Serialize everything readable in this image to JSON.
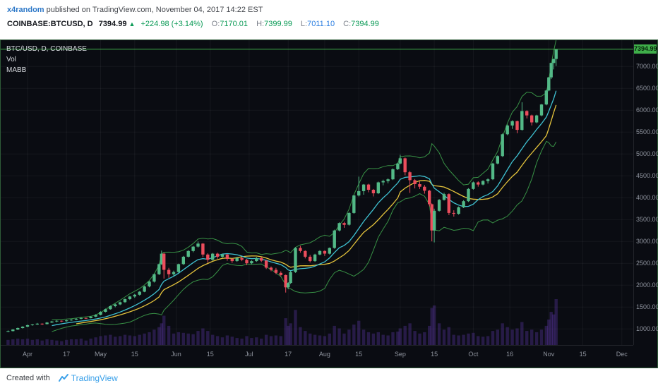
{
  "header": {
    "author": "x4random",
    "published": " published on TradingView.com, November 04, 2017 14:22 EST",
    "symbol": "COINBASE:BTCUSD, D",
    "price": "7394.99",
    "arrow": "▲",
    "change": "+224.98 (+3.14%)",
    "o_label": "O:",
    "o": "7170.01",
    "h_label": "H:",
    "h": "7399.99",
    "l_label": "L:",
    "l": "7011.10",
    "c_label": "C:",
    "c": "7394.99"
  },
  "chart": {
    "legend": [
      "BTC/USD, D, COINBASE",
      "Vol",
      "MABB"
    ],
    "price_tag": "7394.99",
    "price_axis_ticks": [
      {
        "value": 7000,
        "label": "7000.00"
      },
      {
        "value": 6500,
        "label": "6500.00"
      },
      {
        "value": 6000,
        "label": "6000.00"
      },
      {
        "value": 5500,
        "label": "5500.00"
      },
      {
        "value": 5000,
        "label": "5000.00"
      },
      {
        "value": 4500,
        "label": "4500.00"
      },
      {
        "value": 4000,
        "label": "4000.00"
      },
      {
        "value": 3500,
        "label": "3500.00"
      },
      {
        "value": 3000,
        "label": "3000.00"
      },
      {
        "value": 2500,
        "label": "2500.00"
      },
      {
        "value": 2000,
        "label": "2000.00"
      },
      {
        "value": 1500,
        "label": "1500.00"
      },
      {
        "value": 1000,
        "label": "1000.00"
      }
    ],
    "time_axis_ticks": [
      {
        "d": 0,
        "label": "Apr"
      },
      {
        "d": 16,
        "label": "17"
      },
      {
        "d": 30,
        "label": "May"
      },
      {
        "d": 44,
        "label": "15"
      },
      {
        "d": 61,
        "label": "Jun"
      },
      {
        "d": 75,
        "label": "15"
      },
      {
        "d": 91,
        "label": "Jul"
      },
      {
        "d": 107,
        "label": "17"
      },
      {
        "d": 122,
        "label": "Aug"
      },
      {
        "d": 136,
        "label": "15"
      },
      {
        "d": 153,
        "label": "Sep"
      },
      {
        "d": 167,
        "label": "15"
      },
      {
        "d": 183,
        "label": "Oct"
      },
      {
        "d": 198,
        "label": "16"
      },
      {
        "d": 214,
        "label": "Nov"
      },
      {
        "d": 228,
        "label": "15"
      },
      {
        "d": 244,
        "label": "Dec"
      }
    ],
    "colors": {
      "up": "#53b987",
      "down": "#eb4d5c",
      "volume": "rgba(103,58,183,0.32)",
      "bb": "#3da04b",
      "ma_fast": "#3fc1d1",
      "ma_slow": "#e5c43c",
      "price_line": "#3fae4a",
      "price_tag_bg": "#3fae4a",
      "grid": "rgba(255,255,255,0.05)"
    }
  },
  "footer": {
    "created_with": "Created with",
    "brand": "TradingView"
  },
  "chart_data": {
    "type": "candlestick",
    "title": "BTC/USD, D, COINBASE",
    "symbol": "COINBASE:BTCUSD",
    "interval": "D",
    "last_price": 7394.99,
    "last_ohlc": {
      "open": 7170.01,
      "high": 7399.99,
      "low": 7011.1,
      "close": 7394.99,
      "change": 224.98,
      "change_pct": 3.14
    },
    "indicators": {
      "name": "MABB",
      "bb_period": 10,
      "bb_mult": 2,
      "ma_fast_period": 10,
      "ma_slow_period": 15
    },
    "y_axis": {
      "min": 1000,
      "max": 7000,
      "tick_step": 500
    },
    "x_axis": "days since 2017-04-01 (Apr=0, May=30, Jun=61, Jul=91, Aug=122, Sep=153, Oct=183, Nov=214, Dec=244)",
    "columns": [
      "day",
      "open",
      "high",
      "low",
      "close",
      "volume"
    ],
    "candles": [
      [
        -8,
        940,
        965,
        925,
        950,
        8
      ],
      [
        -6,
        950,
        995,
        940,
        985,
        9
      ],
      [
        -4,
        985,
        1030,
        975,
        1020,
        10
      ],
      [
        -2,
        1020,
        1062,
        1008,
        1050,
        9
      ],
      [
        0,
        1050,
        1098,
        1040,
        1085,
        10
      ],
      [
        2,
        1085,
        1112,
        1072,
        1100,
        8
      ],
      [
        4,
        1100,
        1135,
        1090,
        1120,
        9
      ],
      [
        6,
        1120,
        1128,
        1088,
        1110,
        7
      ],
      [
        8,
        1110,
        1158,
        1100,
        1145,
        9
      ],
      [
        10,
        1145,
        1182,
        1135,
        1170,
        8
      ],
      [
        12,
        1170,
        1196,
        1152,
        1185,
        7
      ],
      [
        14,
        1185,
        1192,
        1158,
        1175,
        6
      ],
      [
        16,
        1175,
        1208,
        1165,
        1195,
        8
      ],
      [
        18,
        1195,
        1222,
        1185,
        1210,
        9
      ],
      [
        20,
        1210,
        1245,
        1200,
        1230,
        9
      ],
      [
        22,
        1230,
        1262,
        1218,
        1250,
        10
      ],
      [
        24,
        1250,
        1258,
        1228,
        1245,
        7
      ],
      [
        26,
        1245,
        1292,
        1238,
        1280,
        10
      ],
      [
        28,
        1280,
        1335,
        1270,
        1320,
        12
      ],
      [
        30,
        1320,
        1402,
        1310,
        1390,
        14
      ],
      [
        32,
        1390,
        1465,
        1378,
        1450,
        15
      ],
      [
        34,
        1450,
        1535,
        1438,
        1520,
        16
      ],
      [
        36,
        1520,
        1578,
        1495,
        1560,
        13
      ],
      [
        38,
        1560,
        1625,
        1542,
        1610,
        14
      ],
      [
        40,
        1610,
        1695,
        1595,
        1680,
        16
      ],
      [
        42,
        1680,
        1755,
        1660,
        1740,
        15
      ],
      [
        44,
        1740,
        1798,
        1712,
        1780,
        14
      ],
      [
        46,
        1780,
        1865,
        1762,
        1850,
        16
      ],
      [
        48,
        1850,
        1985,
        1838,
        1970,
        18
      ],
      [
        50,
        1970,
        2098,
        1952,
        2080,
        20
      ],
      [
        52,
        2080,
        2268,
        2060,
        2250,
        24
      ],
      [
        54,
        2250,
        2495,
        2230,
        2480,
        28
      ],
      [
        55,
        2480,
        2790,
        2460,
        2720,
        34
      ],
      [
        56,
        2720,
        2738,
        2150,
        2350,
        46
      ],
      [
        58,
        2350,
        2395,
        2168,
        2250,
        30
      ],
      [
        60,
        2250,
        2332,
        2205,
        2300,
        18
      ],
      [
        62,
        2300,
        2492,
        2285,
        2480,
        20
      ],
      [
        64,
        2480,
        2668,
        2462,
        2650,
        19
      ],
      [
        66,
        2650,
        2798,
        2632,
        2780,
        18
      ],
      [
        68,
        2780,
        2895,
        2752,
        2880,
        17
      ],
      [
        70,
        2880,
        3000,
        2858,
        2950,
        22
      ],
      [
        72,
        2950,
        2962,
        2642,
        2700,
        26
      ],
      [
        74,
        2700,
        2728,
        2512,
        2580,
        22
      ],
      [
        76,
        2580,
        2735,
        2560,
        2720,
        16
      ],
      [
        78,
        2720,
        2742,
        2605,
        2650,
        14
      ],
      [
        80,
        2650,
        2718,
        2628,
        2700,
        12
      ],
      [
        82,
        2700,
        2712,
        2558,
        2600,
        15
      ],
      [
        84,
        2600,
        2618,
        2508,
        2550,
        13
      ],
      [
        86,
        2550,
        2648,
        2532,
        2620,
        11
      ],
      [
        88,
        2620,
        2638,
        2548,
        2580,
        10
      ],
      [
        90,
        2580,
        2598,
        2458,
        2500,
        14
      ],
      [
        92,
        2500,
        2568,
        2478,
        2550,
        11
      ],
      [
        94,
        2550,
        2645,
        2532,
        2620,
        12
      ],
      [
        96,
        2620,
        2638,
        2528,
        2560,
        10
      ],
      [
        98,
        2560,
        2572,
        2368,
        2400,
        16
      ],
      [
        100,
        2400,
        2428,
        2318,
        2350,
        14
      ],
      [
        102,
        2350,
        2395,
        2252,
        2280,
        15
      ],
      [
        104,
        2280,
        2318,
        2198,
        2230,
        14
      ],
      [
        106,
        2230,
        2242,
        1830,
        1950,
        42
      ],
      [
        107,
        1950,
        2068,
        1912,
        2050,
        30
      ],
      [
        108,
        2050,
        2322,
        2028,
        2300,
        34
      ],
      [
        110,
        2300,
        2868,
        2282,
        2850,
        55
      ],
      [
        112,
        2850,
        2898,
        2742,
        2780,
        28
      ],
      [
        114,
        2780,
        2795,
        2612,
        2650,
        22
      ],
      [
        116,
        2650,
        2692,
        2518,
        2550,
        18
      ],
      [
        118,
        2550,
        2718,
        2532,
        2700,
        16
      ],
      [
        120,
        2700,
        2798,
        2682,
        2780,
        15
      ],
      [
        122,
        2780,
        2795,
        2668,
        2720,
        14
      ],
      [
        124,
        2720,
        2862,
        2702,
        2850,
        18
      ],
      [
        126,
        2850,
        3268,
        2832,
        3250,
        30
      ],
      [
        128,
        3250,
        3435,
        3228,
        3420,
        26
      ],
      [
        130,
        3420,
        3448,
        3312,
        3380,
        18
      ],
      [
        132,
        3380,
        3668,
        3362,
        3650,
        24
      ],
      [
        134,
        3650,
        4065,
        3632,
        4050,
        32
      ],
      [
        136,
        4050,
        4480,
        4028,
        4150,
        38
      ],
      [
        138,
        4150,
        4312,
        4068,
        4300,
        24
      ],
      [
        140,
        4300,
        4318,
        4122,
        4180,
        20
      ],
      [
        142,
        4180,
        4198,
        4028,
        4100,
        18
      ],
      [
        144,
        4100,
        4368,
        4082,
        4350,
        20
      ],
      [
        146,
        4350,
        4412,
        4282,
        4380,
        16
      ],
      [
        148,
        4380,
        4442,
        4328,
        4420,
        15
      ],
      [
        150,
        4420,
        4668,
        4402,
        4650,
        20
      ],
      [
        152,
        4650,
        4798,
        4632,
        4780,
        21
      ],
      [
        153,
        4780,
        4980,
        4762,
        4900,
        26
      ],
      [
        155,
        4900,
        4918,
        4512,
        4580,
        30
      ],
      [
        157,
        4580,
        4612,
        4108,
        4400,
        34
      ],
      [
        159,
        4400,
        4428,
        4212,
        4310,
        22
      ],
      [
        161,
        4310,
        4372,
        4198,
        4250,
        18
      ],
      [
        163,
        4250,
        4288,
        4092,
        4160,
        20
      ],
      [
        165,
        4160,
        4178,
        3802,
        3850,
        30
      ],
      [
        166,
        3850,
        3868,
        3002,
        3250,
        58
      ],
      [
        167,
        3250,
        3748,
        2978,
        3700,
        62
      ],
      [
        169,
        3700,
        3968,
        3682,
        3950,
        34
      ],
      [
        171,
        3950,
        4112,
        3932,
        4080,
        24
      ],
      [
        173,
        4080,
        4098,
        3602,
        3650,
        28
      ],
      [
        175,
        3650,
        3712,
        3568,
        3630,
        16
      ],
      [
        177,
        3630,
        3798,
        3612,
        3780,
        15
      ],
      [
        179,
        3780,
        3942,
        3762,
        3920,
        16
      ],
      [
        181,
        3920,
        4218,
        3902,
        4200,
        18
      ],
      [
        183,
        4200,
        4368,
        4182,
        4350,
        19
      ],
      [
        185,
        4350,
        4372,
        4252,
        4300,
        14
      ],
      [
        187,
        4300,
        4398,
        4282,
        4380,
        13
      ],
      [
        189,
        4380,
        4442,
        4322,
        4420,
        14
      ],
      [
        191,
        4420,
        4798,
        4402,
        4780,
        22
      ],
      [
        193,
        4780,
        4968,
        4762,
        4950,
        24
      ],
      [
        195,
        4950,
        5468,
        4932,
        5450,
        34
      ],
      [
        197,
        5450,
        5672,
        5428,
        5650,
        28
      ],
      [
        199,
        5650,
        5768,
        5572,
        5750,
        24
      ],
      [
        201,
        5750,
        5762,
        5472,
        5550,
        26
      ],
      [
        203,
        5550,
        6182,
        5532,
        5980,
        36
      ],
      [
        205,
        5980,
        5998,
        5812,
        5880,
        22
      ],
      [
        207,
        5880,
        5898,
        5652,
        5720,
        24
      ],
      [
        209,
        5720,
        5895,
        5702,
        5880,
        20
      ],
      [
        211,
        5880,
        6142,
        5862,
        6130,
        24
      ],
      [
        213,
        6130,
        6468,
        6112,
        6450,
        30
      ],
      [
        214,
        6450,
        6762,
        6432,
        6750,
        40
      ],
      [
        215,
        6750,
        7088,
        6712,
        7080,
        52
      ],
      [
        216,
        7080,
        7180,
        6932,
        7170,
        48
      ],
      [
        217,
        7170.01,
        7399.99,
        7011.1,
        7394.99,
        72
      ]
    ]
  }
}
